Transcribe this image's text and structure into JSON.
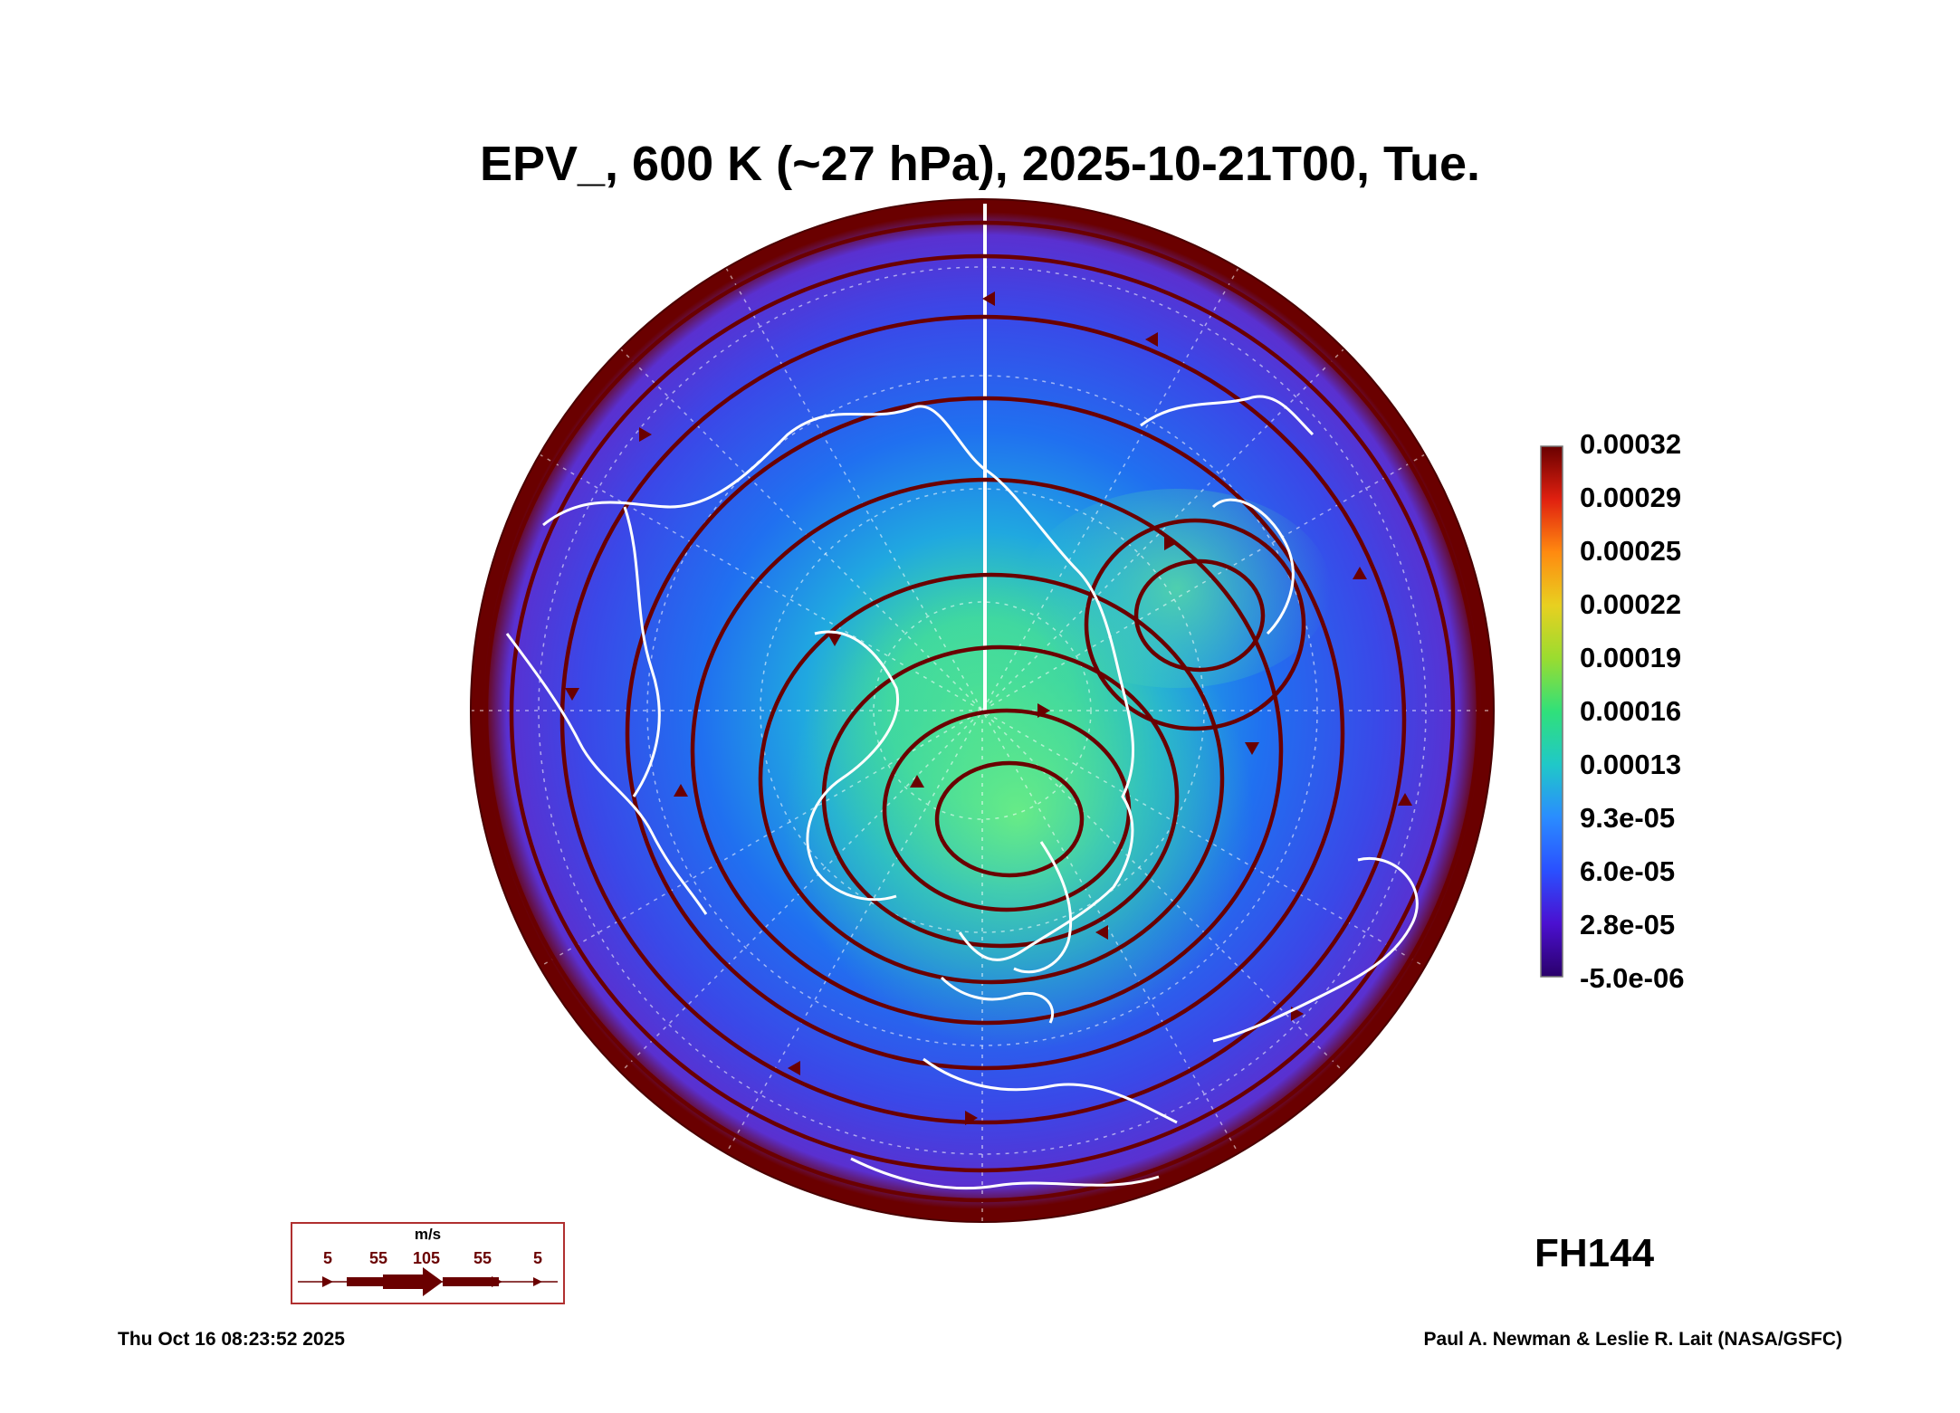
{
  "title": "EPV_, 600 K (~27 hPa), 2025-10-21T00, Tue.",
  "colorbar": {
    "labels": [
      "0.00032",
      "0.00029",
      "0.00025",
      "0.00022",
      "0.00019",
      "0.00016",
      "0.00013",
      "9.3e-05",
      "6.0e-05",
      "2.8e-05",
      "-5.0e-06"
    ],
    "colors": [
      "#4b0082",
      "#3a20d0",
      "#2a50ff",
      "#2a8cff",
      "#20c8c8",
      "#30e07a",
      "#9adc30",
      "#e8d020",
      "#ff8a10",
      "#e02010",
      "#6a0000"
    ]
  },
  "wind_legend": {
    "unit": "m/s",
    "ticks": [
      "5",
      "55",
      "105",
      "55",
      "5"
    ],
    "arrow_color": "#6a0000"
  },
  "forecast_hour": "FH144",
  "timestamp": "Thu Oct 16 08:23:52 2025",
  "credit": "Paul A. Newman & Leslie R. Lait (NASA/GSFC)"
}
